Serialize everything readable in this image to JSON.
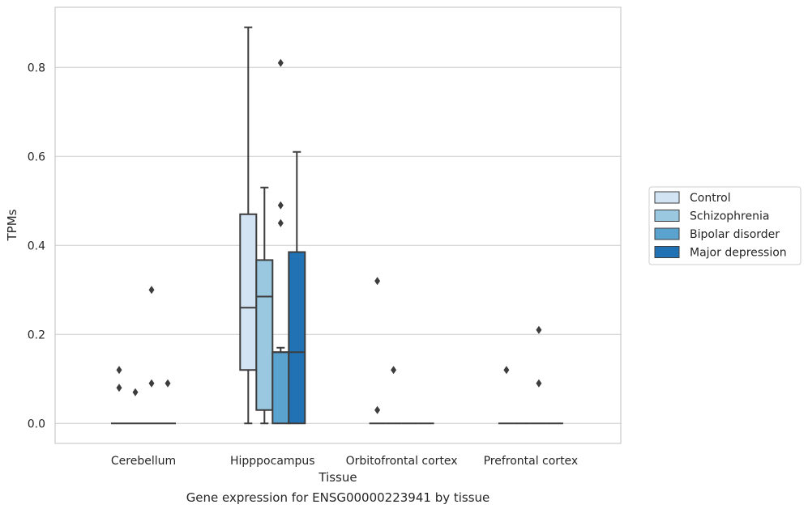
{
  "caption": "Gene expression for ENSG00000223941 by tissue",
  "chart_data": {
    "type": "box",
    "xlabel": "Tissue",
    "ylabel": "TPMs",
    "ylim": [
      -0.045,
      0.935
    ],
    "yticks": [
      0.0,
      0.2,
      0.4,
      0.6,
      0.8
    ],
    "ytick_labels": [
      "0.0",
      "0.2",
      "0.4",
      "0.6",
      "0.8"
    ],
    "grid": "horizontal",
    "legend_position": "right",
    "categories": [
      "Cerebellum",
      "Hipppocampus",
      "Orbitofrontal cortex",
      "Prefrontal cortex"
    ],
    "series": [
      {
        "name": "Control",
        "color": "#d2e3f3",
        "boxes": [
          {
            "q1": 0.0,
            "median": 0.0,
            "q3": 0.0,
            "whisker_low": 0.0,
            "whisker_high": 0.0,
            "outliers": [
              0.12,
              0.08
            ]
          },
          {
            "q1": 0.12,
            "median": 0.26,
            "q3": 0.47,
            "whisker_low": 0.0,
            "whisker_high": 0.89,
            "outliers": []
          },
          {
            "q1": 0.0,
            "median": 0.0,
            "q3": 0.0,
            "whisker_low": 0.0,
            "whisker_high": 0.0,
            "outliers": [
              0.32,
              0.03
            ]
          },
          {
            "q1": 0.0,
            "median": 0.0,
            "q3": 0.0,
            "whisker_low": 0.0,
            "whisker_high": 0.0,
            "outliers": [
              0.12
            ]
          }
        ]
      },
      {
        "name": "Schizophrenia",
        "color": "#9ac8e0",
        "boxes": [
          {
            "q1": 0.0,
            "median": 0.0,
            "q3": 0.0,
            "whisker_low": 0.0,
            "whisker_high": 0.0,
            "outliers": [
              0.07
            ]
          },
          {
            "q1": 0.03,
            "median": 0.285,
            "q3": 0.367,
            "whisker_low": 0.0,
            "whisker_high": 0.53,
            "outliers": []
          },
          {
            "q1": 0.0,
            "median": 0.0,
            "q3": 0.0,
            "whisker_low": 0.0,
            "whisker_high": 0.0,
            "outliers": [
              0.12
            ]
          },
          {
            "q1": 0.0,
            "median": 0.0,
            "q3": 0.0,
            "whisker_low": 0.0,
            "whisker_high": 0.0,
            "outliers": []
          }
        ]
      },
      {
        "name": "Bipolar disorder",
        "color": "#5ba3cf",
        "boxes": [
          {
            "q1": 0.0,
            "median": 0.0,
            "q3": 0.0,
            "whisker_low": 0.0,
            "whisker_high": 0.0,
            "outliers": [
              0.3,
              0.09
            ]
          },
          {
            "q1": 0.0,
            "median": 0.16,
            "q3": 0.16,
            "whisker_low": 0.0,
            "whisker_high": 0.17,
            "outliers": [
              0.81,
              0.49,
              0.45
            ]
          },
          {
            "q1": 0.0,
            "median": 0.0,
            "q3": 0.0,
            "whisker_low": 0.0,
            "whisker_high": 0.0,
            "outliers": []
          },
          {
            "q1": 0.0,
            "median": 0.0,
            "q3": 0.0,
            "whisker_low": 0.0,
            "whisker_high": 0.0,
            "outliers": [
              0.21,
              0.09
            ]
          }
        ]
      },
      {
        "name": "Major depression",
        "color": "#2171b5",
        "boxes": [
          {
            "q1": 0.0,
            "median": 0.0,
            "q3": 0.0,
            "whisker_low": 0.0,
            "whisker_high": 0.0,
            "outliers": [
              0.09
            ]
          },
          {
            "q1": 0.0,
            "median": 0.16,
            "q3": 0.385,
            "whisker_low": 0.0,
            "whisker_high": 0.61,
            "outliers": []
          },
          {
            "q1": 0.0,
            "median": 0.0,
            "q3": 0.0,
            "whisker_low": 0.0,
            "whisker_high": 0.0,
            "outliers": []
          },
          {
            "q1": 0.0,
            "median": 0.0,
            "q3": 0.0,
            "whisker_low": 0.0,
            "whisker_high": 0.0,
            "outliers": []
          }
        ]
      }
    ]
  }
}
